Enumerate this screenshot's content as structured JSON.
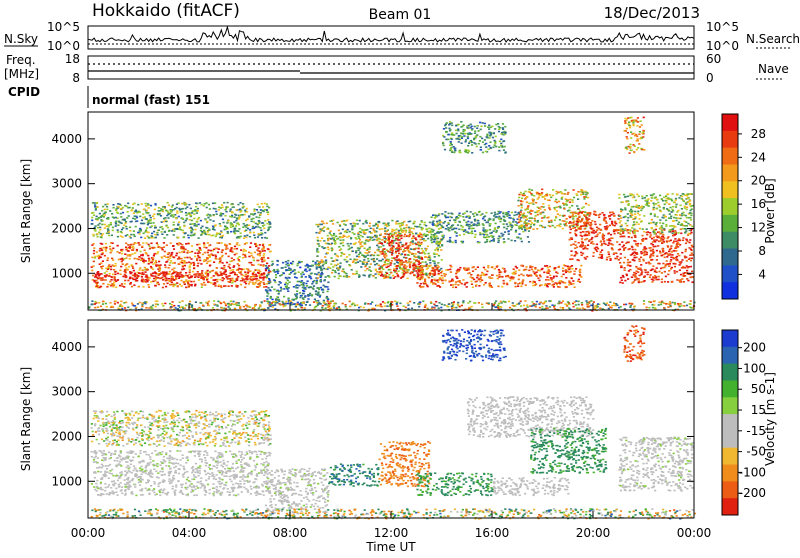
{
  "header": {
    "site": "Hokkaido (fitACF)",
    "beam": "Beam 01",
    "date": "18/Dec/2013"
  },
  "panels": {
    "nsky": {
      "label": "N.Sky",
      "right_label": "N.Search",
      "ticks_left": [
        "10^5",
        "10^0"
      ],
      "ticks_right": [
        "10^5",
        "10^0"
      ]
    },
    "freq": {
      "label_line1": "Freq.",
      "label_line2": "[MHz]",
      "right_label": "Nave",
      "ticks_left": [
        "18",
        "8"
      ],
      "ticks_right": [
        "60",
        "0"
      ]
    },
    "cpid": {
      "label": "CPID",
      "value": "normal (fast) 151"
    }
  },
  "colors": {
    "power_scale": [
      "#1030e0",
      "#2050c8",
      "#2f6a8e",
      "#3e8c66",
      "#5aae3a",
      "#9ccd2d",
      "#f0c020",
      "#f39a1c",
      "#ef6c14",
      "#e83c10",
      "#e01010"
    ],
    "velocity_scale": [
      "#1c3cd0",
      "#2b64b0",
      "#2a8a5c",
      "#43b02e",
      "#86d040",
      "#bdbdbd",
      "#bdbdbd",
      "#f0b830",
      "#f08c1c",
      "#ec5c14",
      "#e02010"
    ]
  },
  "chart_data": [
    {
      "type": "heatmap",
      "name": "power",
      "ylabel": "Slant Range [km]",
      "yticks": [
        "1000",
        "2000",
        "3000",
        "4000"
      ],
      "ylim": [
        180,
        4600
      ],
      "colorbar_label": "Power [dB]",
      "colorbar_ticks": [
        "4",
        "8",
        "12",
        "16",
        "20",
        "24",
        "28"
      ],
      "colorbar_range": [
        0,
        30
      ],
      "regions": [
        {
          "t0": 0.1,
          "t1": 7.2,
          "r0": 700,
          "r1": 1700,
          "level": 24,
          "spread": 8
        },
        {
          "t0": 0.1,
          "t1": 7.2,
          "r0": 1800,
          "r1": 2600,
          "level": 12,
          "spread": 7
        },
        {
          "t0": 0.2,
          "t1": 7.0,
          "r0": 850,
          "r1": 1050,
          "level": 28,
          "spread": 3
        },
        {
          "t0": 7.0,
          "t1": 9.5,
          "r0": 300,
          "r1": 1300,
          "level": 8,
          "spread": 6
        },
        {
          "t0": 9.0,
          "t1": 14.0,
          "r0": 900,
          "r1": 2200,
          "level": 14,
          "spread": 8
        },
        {
          "t0": 11.5,
          "t1": 13.2,
          "r0": 900,
          "r1": 1900,
          "level": 26,
          "spread": 5
        },
        {
          "t0": 13.0,
          "t1": 19.5,
          "r0": 700,
          "r1": 1200,
          "level": 24,
          "spread": 6
        },
        {
          "t0": 13.5,
          "t1": 17.5,
          "r0": 1700,
          "r1": 2400,
          "level": 10,
          "spread": 6
        },
        {
          "t0": 14.0,
          "t1": 16.5,
          "r0": 3700,
          "r1": 4400,
          "level": 10,
          "spread": 6
        },
        {
          "t0": 17.0,
          "t1": 19.8,
          "r0": 2000,
          "r1": 2900,
          "level": 18,
          "spread": 8
        },
        {
          "t0": 19.0,
          "t1": 21.0,
          "r0": 1300,
          "r1": 2400,
          "level": 26,
          "spread": 4
        },
        {
          "t0": 21.0,
          "t1": 23.9,
          "r0": 800,
          "r1": 2000,
          "level": 26,
          "spread": 4
        },
        {
          "t0": 21.0,
          "t1": 23.9,
          "r0": 1900,
          "r1": 2800,
          "level": 14,
          "spread": 6
        },
        {
          "t0": 21.2,
          "t1": 22.0,
          "r0": 3700,
          "r1": 4500,
          "level": 20,
          "spread": 8
        },
        {
          "t0": 0.0,
          "t1": 24.0,
          "r0": 180,
          "r1": 400,
          "level": 16,
          "spread": 12
        }
      ]
    },
    {
      "type": "heatmap",
      "name": "velocity",
      "ylabel": "Slant Range [km]",
      "yticks": [
        "1000",
        "2000",
        "3000",
        "4000"
      ],
      "ylim": [
        180,
        4600
      ],
      "colorbar_label": "Velocity [m s-1]",
      "colorbar_ticks": [
        "200",
        "100",
        "50",
        "15",
        "-15",
        "-50",
        "-100",
        "-200"
      ],
      "xticks": [
        "00:00",
        "04:00",
        "08:00",
        "12:00",
        "16:00",
        "20:00",
        "00:00"
      ],
      "xlabel": "Time UT",
      "regions": [
        {
          "t0": 0.1,
          "t1": 7.2,
          "r0": 700,
          "r1": 1700,
          "vel": 0,
          "spread": 10
        },
        {
          "t0": 0.1,
          "t1": 7.2,
          "r0": 1800,
          "r1": 2600,
          "vel": -5,
          "spread": 30
        },
        {
          "t0": 7.0,
          "t1": 9.5,
          "r0": 300,
          "r1": 1300,
          "vel": 0,
          "spread": 10
        },
        {
          "t0": 9.5,
          "t1": 11.5,
          "r0": 900,
          "r1": 1400,
          "vel": 60,
          "spread": 30
        },
        {
          "t0": 11.5,
          "t1": 13.5,
          "r0": 900,
          "r1": 1900,
          "vel": -70,
          "spread": 30
        },
        {
          "t0": 13.0,
          "t1": 16.0,
          "r0": 700,
          "r1": 1200,
          "vel": 40,
          "spread": 20
        },
        {
          "t0": 16.0,
          "t1": 19.0,
          "r0": 700,
          "r1": 1100,
          "vel": 0,
          "spread": 8
        },
        {
          "t0": 14.0,
          "t1": 16.5,
          "r0": 3700,
          "r1": 4400,
          "vel": 150,
          "spread": 60
        },
        {
          "t0": 15.0,
          "t1": 20.0,
          "r0": 2000,
          "r1": 2900,
          "vel": 0,
          "spread": 8
        },
        {
          "t0": 17.5,
          "t1": 20.5,
          "r0": 1200,
          "r1": 2200,
          "vel": 40,
          "spread": 15
        },
        {
          "t0": 21.0,
          "t1": 23.9,
          "r0": 800,
          "r1": 2000,
          "vel": 0,
          "spread": 10
        },
        {
          "t0": 21.2,
          "t1": 22.0,
          "r0": 3700,
          "r1": 4500,
          "vel": -120,
          "spread": 60
        },
        {
          "t0": 0.0,
          "t1": 24.0,
          "r0": 180,
          "r1": 400,
          "vel": 0,
          "spread": 80
        }
      ]
    }
  ]
}
